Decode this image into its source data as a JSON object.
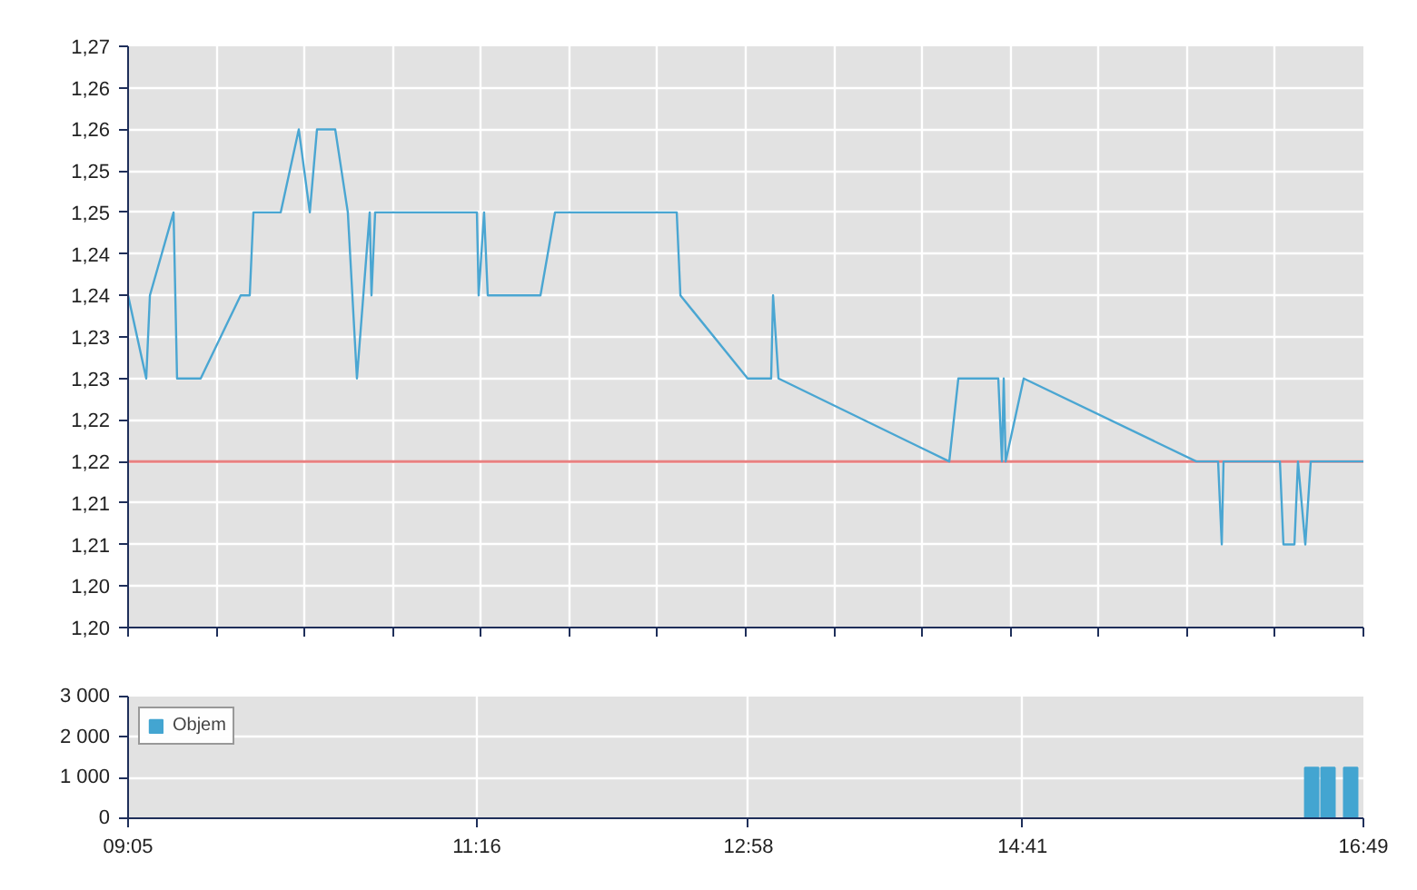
{
  "chart_data": [
    {
      "type": "line",
      "x": [
        9.0833,
        9.197,
        9.22,
        9.368,
        9.39,
        9.538,
        9.788,
        9.845,
        9.868,
        10.039,
        10.152,
        10.221,
        10.266,
        10.38,
        10.459,
        10.516,
        10.596,
        10.607,
        10.63,
        11.267,
        11.278,
        11.312,
        11.335,
        11.665,
        11.756,
        12.518,
        12.541,
        12.962,
        13.109,
        13.121,
        13.155,
        14.224,
        14.281,
        14.531,
        14.554,
        14.565,
        14.577,
        14.69,
        15.771,
        15.907,
        15.93,
        15.941,
        16.294,
        16.316,
        16.385,
        16.407,
        16.453,
        16.487,
        16.8167
      ],
      "series": [
        {
          "color": "#4aa6d2",
          "values": [
            1.24,
            1.23,
            1.24,
            1.25,
            1.23,
            1.23,
            1.24,
            1.24,
            1.25,
            1.25,
            1.26,
            1.25,
            1.26,
            1.26,
            1.25,
            1.23,
            1.25,
            1.24,
            1.25,
            1.25,
            1.24,
            1.25,
            1.24,
            1.24,
            1.25,
            1.25,
            1.24,
            1.23,
            1.23,
            1.24,
            1.23,
            1.22,
            1.23,
            1.23,
            1.22,
            1.23,
            1.22,
            1.23,
            1.22,
            1.22,
            1.21,
            1.22,
            1.22,
            1.21,
            1.21,
            1.22,
            1.21,
            1.22,
            1.22
          ]
        }
      ],
      "xlim": [
        9.0833,
        16.8167
      ],
      "xticks": [
        {
          "value": 9.0833,
          "label": null
        },
        {
          "value": 9.6357,
          "label": null
        },
        {
          "value": 10.1881,
          "label": null
        },
        {
          "value": 10.7405,
          "label": null
        },
        {
          "value": 11.2929,
          "label": null
        },
        {
          "value": 11.8452,
          "label": null
        },
        {
          "value": 12.3976,
          "label": null
        },
        {
          "value": 12.95,
          "label": null
        },
        {
          "value": 13.5024,
          "label": null
        },
        {
          "value": 14.0548,
          "label": null
        },
        {
          "value": 14.6071,
          "label": null
        },
        {
          "value": 15.1595,
          "label": null
        },
        {
          "value": 15.7119,
          "label": null
        },
        {
          "value": 16.2643,
          "label": null
        },
        {
          "value": 16.8167,
          "label": null
        }
      ],
      "ylim": [
        1.2,
        1.27
      ],
      "yticks": [
        {
          "value": 1.2,
          "label": "1,20"
        },
        {
          "value": 1.205,
          "label": "1,20"
        },
        {
          "value": 1.21,
          "label": "1,21"
        },
        {
          "value": 1.215,
          "label": "1,21"
        },
        {
          "value": 1.22,
          "label": "1,22"
        },
        {
          "value": 1.225,
          "label": "1,22"
        },
        {
          "value": 1.23,
          "label": "1,23"
        },
        {
          "value": 1.235,
          "label": "1,23"
        },
        {
          "value": 1.24,
          "label": "1,24"
        },
        {
          "value": 1.245,
          "label": "1,24"
        },
        {
          "value": 1.25,
          "label": "1,25"
        },
        {
          "value": 1.255,
          "label": "1,25"
        },
        {
          "value": 1.26,
          "label": "1,26"
        },
        {
          "value": 1.265,
          "label": "1,26"
        },
        {
          "value": 1.27,
          "label": "1,27"
        }
      ],
      "ref_lines": [
        {
          "axis": "y",
          "value": 1.22,
          "color": "#e88080"
        }
      ],
      "tick_labels": "y",
      "grid": true
    },
    {
      "type": "bar",
      "x": [
        16.493,
        16.595,
        16.737
      ],
      "series": [
        {
          "name": "Objem",
          "color": "#43a5d1",
          "values": [
            1250,
            1250,
            1250
          ]
        }
      ],
      "xlim": [
        9.0833,
        16.8167
      ],
      "xticks": [
        {
          "value": 9.0833,
          "label": "09:05"
        },
        {
          "value": 11.2667,
          "label": "11:16"
        },
        {
          "value": 12.9667,
          "label": "12:58"
        },
        {
          "value": 14.6833,
          "label": "14:41"
        },
        {
          "value": 16.8167,
          "label": "16:49"
        }
      ],
      "ylim": [
        0,
        3000
      ],
      "yticks": [
        {
          "value": 0,
          "label": "0"
        },
        {
          "value": 1000,
          "label": "1 000"
        },
        {
          "value": 2000,
          "label": "2 000"
        },
        {
          "value": 3000,
          "label": "3 000"
        }
      ],
      "legend": "top left",
      "grid": true
    }
  ]
}
